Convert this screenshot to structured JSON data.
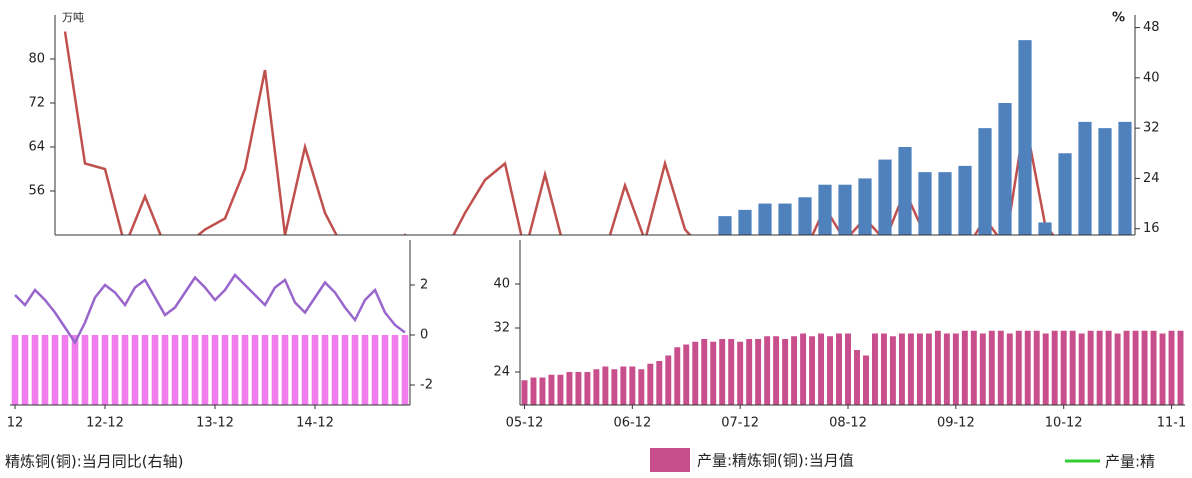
{
  "chart_data": [
    {
      "type": "bar_line",
      "y_unit": "万吨",
      "y2_unit": "%",
      "ylim": [
        48,
        88
      ],
      "yticks": [
        56,
        64,
        72,
        80
      ],
      "y2lim": [
        15,
        50
      ],
      "y2ticks": [
        16,
        24,
        32,
        40,
        48
      ],
      "categories": [
        null,
        null,
        null,
        null,
        null,
        null,
        null,
        null,
        null,
        null,
        null,
        null,
        null,
        null,
        null,
        null,
        null,
        null,
        null,
        null,
        null,
        null,
        null,
        null,
        null,
        null,
        null,
        null,
        null,
        null,
        null,
        null,
        null,
        null,
        null,
        null,
        null,
        null,
        null,
        null,
        null,
        null,
        null,
        null,
        null,
        null,
        null,
        null,
        null,
        null,
        null,
        null,
        null,
        null
      ],
      "series": [
        {
          "type": "line",
          "color": "#c0504d",
          "values": [
            85,
            61,
            60,
            46,
            55,
            46,
            46,
            49,
            51,
            60,
            78,
            48,
            64,
            52,
            45,
            45,
            45,
            48,
            45,
            45,
            52,
            58,
            61,
            45,
            59,
            45,
            45,
            45,
            57,
            47,
            61,
            49,
            45,
            45,
            45,
            45,
            45,
            45,
            53,
            47,
            51,
            47,
            56,
            48,
            45,
            45,
            51,
            46,
            69,
            50,
            45,
            45,
            45,
            45
          ]
        },
        {
          "type": "bar",
          "color": "#4f81bd",
          "axis": "y2",
          "values": [
            null,
            null,
            null,
            null,
            null,
            null,
            null,
            null,
            null,
            null,
            null,
            null,
            null,
            null,
            null,
            null,
            null,
            null,
            null,
            null,
            null,
            null,
            null,
            null,
            null,
            null,
            null,
            null,
            null,
            null,
            null,
            null,
            null,
            18,
            19,
            20,
            20,
            21,
            23,
            23,
            24,
            27,
            29,
            25,
            25,
            26,
            32,
            36,
            46,
            17,
            28,
            33,
            32,
            33
          ]
        }
      ]
    },
    {
      "type": "bar_line",
      "ylim": [
        -2.8,
        3.8
      ],
      "yticks": [
        -2,
        0,
        2
      ],
      "categories": [
        "12",
        null,
        null,
        null,
        null,
        null,
        null,
        null,
        null,
        "12-12",
        null,
        null,
        null,
        null,
        null,
        null,
        null,
        null,
        null,
        null,
        "13-12",
        null,
        null,
        null,
        null,
        null,
        null,
        null,
        null,
        null,
        "14-12",
        null,
        null,
        null,
        null,
        null,
        null,
        null,
        null,
        null
      ],
      "series": [
        {
          "type": "bar",
          "color": "#f07cf0",
          "values": [
            0,
            0,
            0,
            0,
            0,
            0,
            0,
            0,
            0,
            0,
            0,
            0,
            0,
            0,
            0,
            0,
            0,
            0,
            0,
            0,
            0,
            0,
            0,
            0,
            0,
            0,
            0,
            0,
            0,
            0,
            0,
            0,
            0,
            0,
            0,
            0,
            0,
            0,
            0,
            0
          ]
        },
        {
          "type": "line",
          "name": "精炼铜(铜):当月同比(右轴)",
          "color": "#9966cc",
          "values": [
            1.6,
            1.2,
            1.8,
            1.4,
            0.9,
            0.3,
            -0.3,
            0.5,
            1.5,
            2.0,
            1.7,
            1.2,
            1.9,
            2.2,
            1.5,
            0.8,
            1.1,
            1.7,
            2.3,
            1.9,
            1.4,
            1.8,
            2.4,
            2.0,
            1.6,
            1.2,
            1.9,
            2.2,
            1.3,
            0.9,
            1.5,
            2.1,
            1.7,
            1.1,
            0.6,
            1.4,
            1.8,
            0.9,
            0.4,
            0.1
          ]
        }
      ]
    },
    {
      "type": "bar_line",
      "ylim": [
        18,
        48
      ],
      "yticks": [
        24,
        32,
        40
      ],
      "categories": [
        "05-12",
        null,
        null,
        null,
        null,
        null,
        null,
        null,
        null,
        null,
        null,
        null,
        "06-12",
        null,
        null,
        null,
        null,
        null,
        null,
        null,
        null,
        null,
        null,
        null,
        "07-12",
        null,
        null,
        null,
        null,
        null,
        null,
        null,
        null,
        null,
        null,
        null,
        "08-12",
        null,
        null,
        null,
        null,
        null,
        null,
        null,
        null,
        null,
        null,
        null,
        "09-12",
        null,
        null,
        null,
        null,
        null,
        null,
        null,
        null,
        null,
        null,
        null,
        "10-12",
        null,
        null,
        null,
        null,
        null,
        null,
        null,
        null,
        null,
        null,
        null,
        "11-1",
        null
      ],
      "series": [
        {
          "type": "bar",
          "name": "产量:精炼铜(铜):当月值",
          "color": "#c94f8c",
          "values": [
            22.5,
            23,
            23,
            23.5,
            23.5,
            24,
            24,
            24,
            24.5,
            25,
            24.5,
            25,
            25,
            24.5,
            25.5,
            26,
            27,
            28.5,
            29,
            29.5,
            30,
            29.5,
            30,
            30,
            29.5,
            30,
            30,
            30.5,
            30.5,
            30,
            30.5,
            31,
            30.5,
            31,
            30.5,
            31,
            31,
            28,
            27,
            31,
            31,
            30.5,
            31,
            31,
            31,
            31,
            31.5,
            31,
            31,
            31.5,
            31.5,
            31,
            31.5,
            31.5,
            31,
            31.5,
            31.5,
            31.5,
            31,
            31.5,
            31.5,
            31.5,
            31,
            31.5,
            31.5,
            31.5,
            31,
            31.5,
            31.5,
            31.5,
            31.5,
            31,
            31.5,
            31.5
          ]
        }
      ],
      "legend": [
        {
          "name": "产量:精",
          "color": "#33cc33"
        }
      ]
    }
  ]
}
